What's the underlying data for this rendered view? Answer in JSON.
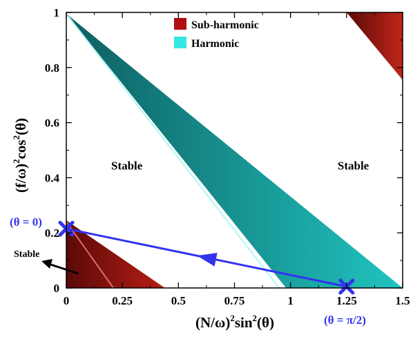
{
  "chart_data": {
    "type": "area",
    "title": "",
    "xlabel": "(N/ω)²sin²(θ)",
    "ylabel": "(f/ω)²cos²(θ)",
    "xlabel_parts": [
      "(N/ω)",
      "2",
      "sin",
      "2",
      "(θ)"
    ],
    "ylabel_parts": [
      "(f/ω)",
      "2",
      "cos",
      "2",
      "(θ)"
    ],
    "xlim": [
      0,
      1.5
    ],
    "ylim": [
      0,
      1
    ],
    "x_ticks": [
      0,
      0.25,
      0.5,
      0.75,
      1,
      1.25,
      1.5
    ],
    "x_tick_labels": [
      "0",
      "0.25",
      "0.5",
      "0.75",
      "1",
      "1.25",
      "1.5"
    ],
    "y_ticks": [
      0,
      0.2,
      0.4,
      0.6,
      0.8,
      1
    ],
    "y_tick_labels": [
      "0",
      "0.2",
      "0.4",
      "0.6",
      "0.8",
      "1"
    ],
    "legend": {
      "position": "top-center",
      "entries": [
        {
          "label": "Sub-harmonic",
          "color": "#b01010"
        },
        {
          "label": "Harmonic",
          "color": "#33e8e0"
        }
      ]
    },
    "regions": [
      {
        "series": "Harmonic",
        "polygon": [
          [
            0,
            0.995
          ],
          [
            0.98,
            0
          ],
          [
            1.5,
            0
          ]
        ],
        "color_light": "#20c4c0",
        "color_dark": "#0e5e60"
      },
      {
        "series": "Sub-harmonic",
        "polygon": [
          [
            0,
            0.245
          ],
          [
            0,
            0
          ],
          [
            0.44,
            0
          ]
        ],
        "color_light": "#b81e14",
        "color_dark": "#5a0a08"
      },
      {
        "series": "Sub-harmonic",
        "polygon": [
          [
            1.25,
            1
          ],
          [
            1.5,
            1
          ],
          [
            1.5,
            0.755
          ]
        ],
        "color_light": "#c0261a",
        "color_dark": "#5a0a08"
      }
    ],
    "path": {
      "color": "#3333ee",
      "start": {
        "x": 1.25,
        "y": 0.005,
        "label": "(θ = π/2)"
      },
      "end": {
        "x": 0.0,
        "y": 0.215,
        "label": "(θ = 0)"
      }
    },
    "annotations": [
      {
        "text": "Stable",
        "x": 0.27,
        "y": 0.445
      },
      {
        "text": "Stable",
        "x": 1.28,
        "y": 0.445
      }
    ],
    "side_note": {
      "text": "Stable",
      "color": "#000000"
    }
  }
}
